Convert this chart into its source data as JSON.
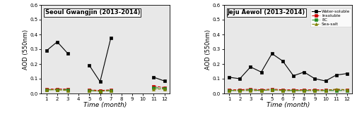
{
  "title_left": "Seoul Gwangjin (2013-2014)",
  "title_right": "Jeju Aewol (2013-2014)",
  "xlabel": "Time (month)",
  "ylabel": "AOD (550nm)",
  "ylim": [
    0.0,
    0.6
  ],
  "yticks": [
    0.0,
    0.1,
    0.2,
    0.3,
    0.4,
    0.5,
    0.6
  ],
  "xticks": [
    1,
    2,
    3,
    4,
    5,
    6,
    7,
    8,
    9,
    10,
    11,
    12
  ],
  "gwangjin_water_soluble": [
    0.29,
    0.35,
    0.27,
    null,
    0.19,
    0.08,
    0.375,
    null,
    null,
    null,
    0.11,
    0.085
  ],
  "gwangjin_insoluble": [
    0.03,
    0.03,
    0.03,
    null,
    0.025,
    0.02,
    0.025,
    null,
    null,
    null,
    0.05,
    0.04
  ],
  "gwangjin_ec": [
    0.025,
    0.025,
    0.025,
    null,
    0.02,
    0.015,
    0.02,
    null,
    null,
    null,
    0.04,
    0.035
  ],
  "gwangjin_sea_salt": [
    0.025,
    0.025,
    0.02,
    null,
    0.02,
    0.015,
    0.02,
    null,
    null,
    null,
    0.03,
    0.03
  ],
  "aewol_water_soluble": [
    0.11,
    0.1,
    0.18,
    0.145,
    0.27,
    0.22,
    0.12,
    0.145,
    0.1,
    0.085,
    0.125,
    0.135
  ],
  "aewol_insoluble": [
    0.025,
    0.025,
    0.03,
    0.025,
    0.03,
    0.025,
    0.025,
    0.025,
    0.025,
    0.025,
    0.025,
    0.025
  ],
  "aewol_ec": [
    0.02,
    0.02,
    0.025,
    0.02,
    0.025,
    0.02,
    0.02,
    0.02,
    0.02,
    0.02,
    0.02,
    0.02
  ],
  "aewol_sea_salt": [
    0.02,
    0.02,
    0.02,
    0.02,
    0.025,
    0.02,
    0.02,
    0.02,
    0.02,
    0.02,
    0.03,
    0.025
  ],
  "legend_labels": [
    "Water-soluble",
    "Insoluble",
    "EC",
    "Sea-salt"
  ],
  "colors": [
    "black",
    "#cc0000",
    "#228B22",
    "#808000"
  ],
  "linestyles": [
    "-",
    "--",
    "-.",
    "--"
  ],
  "markers": [
    "s",
    "s",
    "s",
    "^"
  ],
  "bg_color": "#e8e8e8"
}
